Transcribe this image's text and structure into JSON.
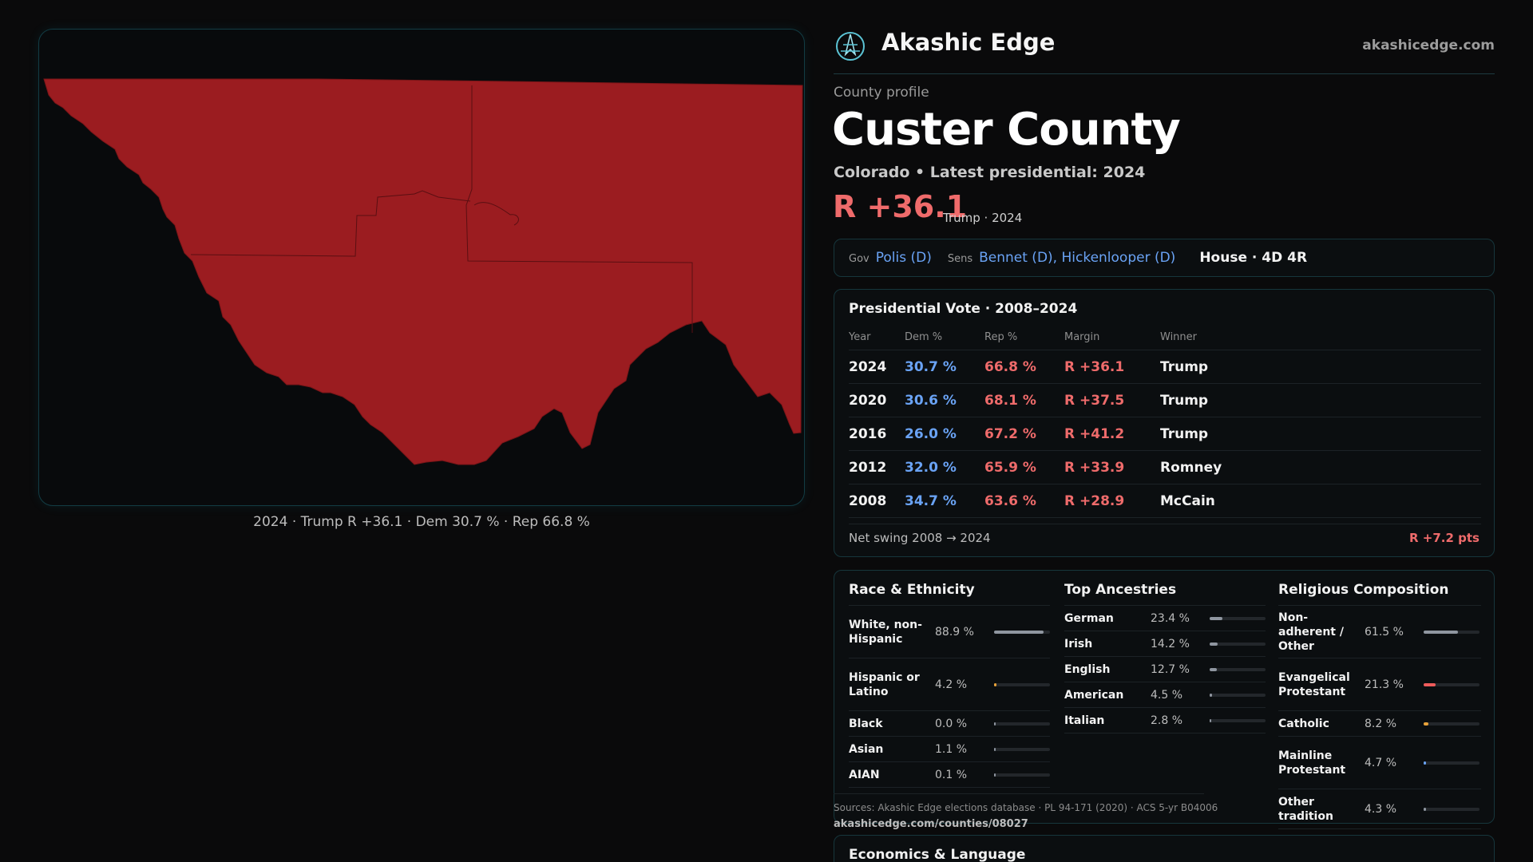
{
  "map": {
    "caption": "2024 · Trump R +36.1 · Dem 30.7 % · Rep 66.8 %",
    "fill_color": "#9b1c20"
  },
  "header": {
    "brand": "Akashic Edge",
    "site": "akashicedge.com",
    "logo_icon": "compass-rose-icon"
  },
  "profile": {
    "eyebrow": "County profile",
    "title": "Custer County",
    "subtitle": "Colorado • Latest presidential: 2024",
    "margin": "R +36.1",
    "margin_sub": "Trump · 2024"
  },
  "officials": {
    "gov_label": "Gov",
    "gov": "Polis (D)",
    "sens_label": "Sens",
    "sens": "Bennet (D), Hickenlooper (D)",
    "house": "House · 4D 4R"
  },
  "presidential": {
    "title": "Presidential Vote · 2008–2024",
    "headers": [
      "Year",
      "Dem %",
      "Rep %",
      "Margin",
      "Winner"
    ],
    "rows": [
      {
        "year": "2024",
        "dem": "30.7 %",
        "rep": "66.8 %",
        "margin": "R +36.1",
        "winner": "Trump"
      },
      {
        "year": "2020",
        "dem": "30.6 %",
        "rep": "68.1 %",
        "margin": "R +37.5",
        "winner": "Trump"
      },
      {
        "year": "2016",
        "dem": "26.0 %",
        "rep": "67.2 %",
        "margin": "R +41.2",
        "winner": "Trump"
      },
      {
        "year": "2012",
        "dem": "32.0 %",
        "rep": "65.9 %",
        "margin": "R +33.9",
        "winner": "Romney"
      },
      {
        "year": "2008",
        "dem": "34.7 %",
        "rep": "63.6 %",
        "margin": "R +28.9",
        "winner": "McCain"
      }
    ],
    "swing_label": "Net swing 2008 → 2024",
    "swing_value": "R +7.2 pts"
  },
  "race": {
    "title": "Race & Ethnicity",
    "items": [
      {
        "label": "White, non-Hispanic",
        "value": "88.9 %",
        "pct": 88.9,
        "color": "#8f96a0"
      },
      {
        "label": "Hispanic or Latino",
        "value": "4.2 %",
        "pct": 4.2,
        "color": "#e8a23a"
      },
      {
        "label": "Black",
        "value": "0.0 %",
        "pct": 0.0,
        "color": "#8f96a0"
      },
      {
        "label": "Asian",
        "value": "1.1 %",
        "pct": 1.1,
        "color": "#8f96a0"
      },
      {
        "label": "AIAN",
        "value": "0.1 %",
        "pct": 0.1,
        "color": "#8f96a0"
      }
    ]
  },
  "ancestry": {
    "title": "Top Ancestries",
    "items": [
      {
        "label": "German",
        "value": "23.4 %",
        "pct": 23.4,
        "color": "#8f96a0"
      },
      {
        "label": "Irish",
        "value": "14.2 %",
        "pct": 14.2,
        "color": "#8f96a0"
      },
      {
        "label": "English",
        "value": "12.7 %",
        "pct": 12.7,
        "color": "#8f96a0"
      },
      {
        "label": "American",
        "value": "4.5 %",
        "pct": 4.5,
        "color": "#8f96a0"
      },
      {
        "label": "Italian",
        "value": "2.8 %",
        "pct": 2.8,
        "color": "#8f96a0"
      }
    ]
  },
  "religion": {
    "title": "Religious Composition",
    "items": [
      {
        "label": "Non-adherent / Other",
        "value": "61.5 %",
        "pct": 61.5,
        "color": "#8f96a0"
      },
      {
        "label": "Evangelical Protestant",
        "value": "21.3 %",
        "pct": 21.3,
        "color": "#ef5b5b"
      },
      {
        "label": "Catholic",
        "value": "8.2 %",
        "pct": 8.2,
        "color": "#e8a23a"
      },
      {
        "label": "Mainline Protestant",
        "value": "4.7 %",
        "pct": 4.7,
        "color": "#6aa3f5"
      },
      {
        "label": "Other tradition",
        "value": "4.3 %",
        "pct": 4.3,
        "color": "#8f96a0"
      }
    ]
  },
  "footer": {
    "sources": "Sources: Akashic Edge elections database · PL 94-171 (2020) · ACS 5-yr B04006",
    "url": "akashicedge.com/counties/08027",
    "econ_title": "Economics & Language"
  }
}
